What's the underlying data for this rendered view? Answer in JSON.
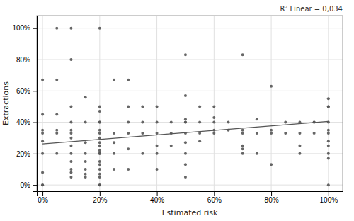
{
  "chart_data": {
    "type": "scatter",
    "xlabel": "Estimated risk",
    "ylabel": "Extractions",
    "annotation": "R² Linear = 0,034",
    "xlim": [
      -0.02,
      1.05
    ],
    "ylim": [
      -0.04,
      1.08
    ],
    "xticks": [
      {
        "value": 0.0,
        "label": "0%"
      },
      {
        "value": 0.2,
        "label": "20%"
      },
      {
        "value": 0.4,
        "label": "40%"
      },
      {
        "value": 0.6,
        "label": "60%"
      },
      {
        "value": 0.8,
        "label": "80%"
      },
      {
        "value": 1.0,
        "label": "100%"
      }
    ],
    "yticks": [
      {
        "value": 0.0,
        "label": "0%"
      },
      {
        "value": 0.2,
        "label": "20%"
      },
      {
        "value": 0.4,
        "label": "40%"
      },
      {
        "value": 0.6,
        "label": "60%"
      },
      {
        "value": 0.8,
        "label": "80%"
      },
      {
        "value": 1.0,
        "label": "100%"
      }
    ],
    "grid": true,
    "series": [
      {
        "type": "scatter",
        "color": "#555555",
        "x": [
          0,
          0,
          0,
          0,
          0,
          0,
          0,
          0,
          0,
          0.05,
          0.05,
          0.05,
          0.05,
          0.05,
          0.05,
          0.1,
          0.1,
          0.1,
          0.1,
          0.1,
          0.1,
          0.1,
          0.1,
          0.1,
          0.1,
          0.1,
          0.1,
          0.1,
          0.15,
          0.15,
          0.15,
          0.15,
          0.15,
          0.15,
          0.15,
          0.15,
          0.2,
          0.2,
          0.2,
          0.2,
          0.2,
          0.2,
          0.2,
          0.2,
          0.2,
          0.2,
          0.2,
          0.2,
          0.2,
          0.2,
          0.2,
          0.2,
          0.2,
          0.2,
          0.2,
          0.2,
          0.25,
          0.25,
          0.25,
          0.25,
          0.25,
          0.3,
          0.3,
          0.3,
          0.3,
          0.3,
          0.3,
          0.35,
          0.35,
          0.35,
          0.35,
          0.4,
          0.4,
          0.4,
          0.4,
          0.4,
          0.4,
          0.45,
          0.45,
          0.45,
          0.5,
          0.5,
          0.5,
          0.5,
          0.5,
          0.5,
          0.5,
          0.5,
          0.5,
          0.5,
          0.55,
          0.55,
          0.55,
          0.55,
          0.6,
          0.6,
          0.6,
          0.6,
          0.6,
          0.65,
          0.65,
          0.7,
          0.7,
          0.7,
          0.7,
          0.7,
          0.7,
          0.75,
          0.75,
          0.75,
          0.8,
          0.8,
          0.8,
          0.8,
          0.85,
          0.85,
          0.9,
          0.9,
          0.9,
          0.9,
          0.95,
          0.95,
          0.95,
          1.0,
          1.0,
          1.0,
          1.0,
          1.0,
          1.0,
          1.0,
          1.0,
          1.0,
          1.0,
          1.0
        ],
        "values": [
          0,
          0,
          0.08,
          0.2,
          0.28,
          0.33,
          0.35,
          0.45,
          0.67,
          0.2,
          0.33,
          0.35,
          0.45,
          0.67,
          1.0,
          0.05,
          0.08,
          0.1,
          0.15,
          0.2,
          0.25,
          0.3,
          0.33,
          0.35,
          0.4,
          0.5,
          0.8,
          1.0,
          0.05,
          0.07,
          0.1,
          0.15,
          0.2,
          0.27,
          0.4,
          0.56,
          0,
          0,
          0.05,
          0.07,
          0.1,
          0.13,
          0.15,
          0.2,
          0.2,
          0.22,
          0.25,
          0.27,
          0.3,
          0.33,
          0.35,
          0.4,
          0.4,
          0.47,
          0.5,
          1.0,
          0.1,
          0.2,
          0.27,
          0.33,
          0.67,
          0.1,
          0.23,
          0.33,
          0.4,
          0.5,
          0.67,
          0.2,
          0.33,
          0.4,
          0.5,
          0.1,
          0.2,
          0.25,
          0.33,
          0.4,
          0.5,
          0.25,
          0.33,
          0.4,
          0.05,
          0.13,
          0.2,
          0.27,
          0.33,
          0.4,
          0.4,
          0.42,
          0.57,
          0.83,
          0.28,
          0.33,
          0.4,
          0.5,
          0.33,
          0.35,
          0.4,
          0.43,
          0.5,
          0.35,
          0.4,
          0.2,
          0.23,
          0.25,
          0.33,
          0.35,
          0.83,
          0.2,
          0.33,
          0.42,
          0.13,
          0.33,
          0.35,
          0.63,
          0.33,
          0.4,
          0.2,
          0.25,
          0.33,
          0.4,
          0.33,
          0.4,
          0.4,
          0,
          0.17,
          0.2,
          0.25,
          0.28,
          0.33,
          0.35,
          0.4,
          0.5,
          0.5,
          0.55
        ]
      },
      {
        "type": "line",
        "color": "#555555",
        "x": [
          0.0,
          1.0
        ],
        "values": [
          0.262,
          0.405
        ]
      }
    ]
  }
}
